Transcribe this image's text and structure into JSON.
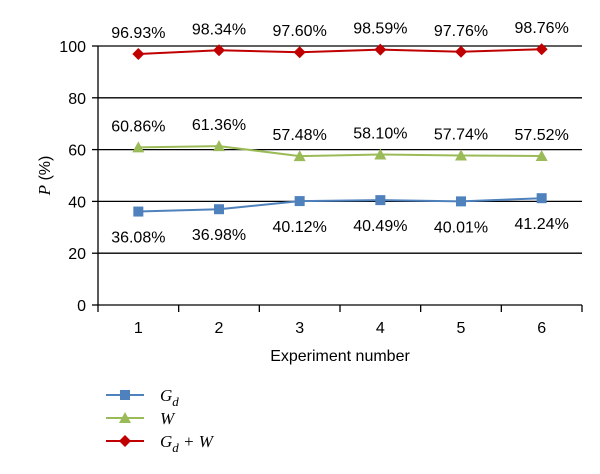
{
  "chart_data": {
    "type": "line",
    "title": "",
    "xlabel": "Experiment number",
    "ylabel": "P (%)",
    "ylabel_italic": "P",
    "ylabel_unit": " (%)",
    "categories": [
      "1",
      "2",
      "3",
      "4",
      "5",
      "6"
    ],
    "ylim": [
      0,
      100
    ],
    "yticks": [
      "0",
      "20",
      "40",
      "60",
      "80",
      "100"
    ],
    "grid": true,
    "legend_position": "bottom-left",
    "series": [
      {
        "name": "Gd",
        "legend_main": "G",
        "legend_sub": "d",
        "legend_rest": "",
        "color": "#4f81bd",
        "marker": "square",
        "values": [
          36.08,
          36.98,
          40.12,
          40.49,
          40.01,
          41.24
        ],
        "labels": [
          "36.08%",
          "36.98%",
          "40.12%",
          "40.49%",
          "40.01%",
          "41.24%"
        ],
        "label_position": "below"
      },
      {
        "name": "W",
        "legend_main": "W",
        "legend_sub": "",
        "legend_rest": "",
        "color": "#9bbb59",
        "marker": "triangle",
        "values": [
          60.86,
          61.36,
          57.48,
          58.1,
          57.74,
          57.52
        ],
        "labels": [
          "60.86%",
          "61.36%",
          "57.48%",
          "58.10%",
          "57.74%",
          "57.52%"
        ],
        "label_position": "above"
      },
      {
        "name": "Gd + W",
        "legend_main": "G",
        "legend_sub": "d",
        "legend_rest": " + W",
        "color": "#c00000",
        "marker": "diamond",
        "values": [
          96.93,
          98.34,
          97.6,
          98.59,
          97.76,
          98.76
        ],
        "labels": [
          "96.93%",
          "98.34%",
          "97.60%",
          "98.59%",
          "97.76%",
          "98.76%"
        ],
        "label_position": "above"
      }
    ]
  }
}
